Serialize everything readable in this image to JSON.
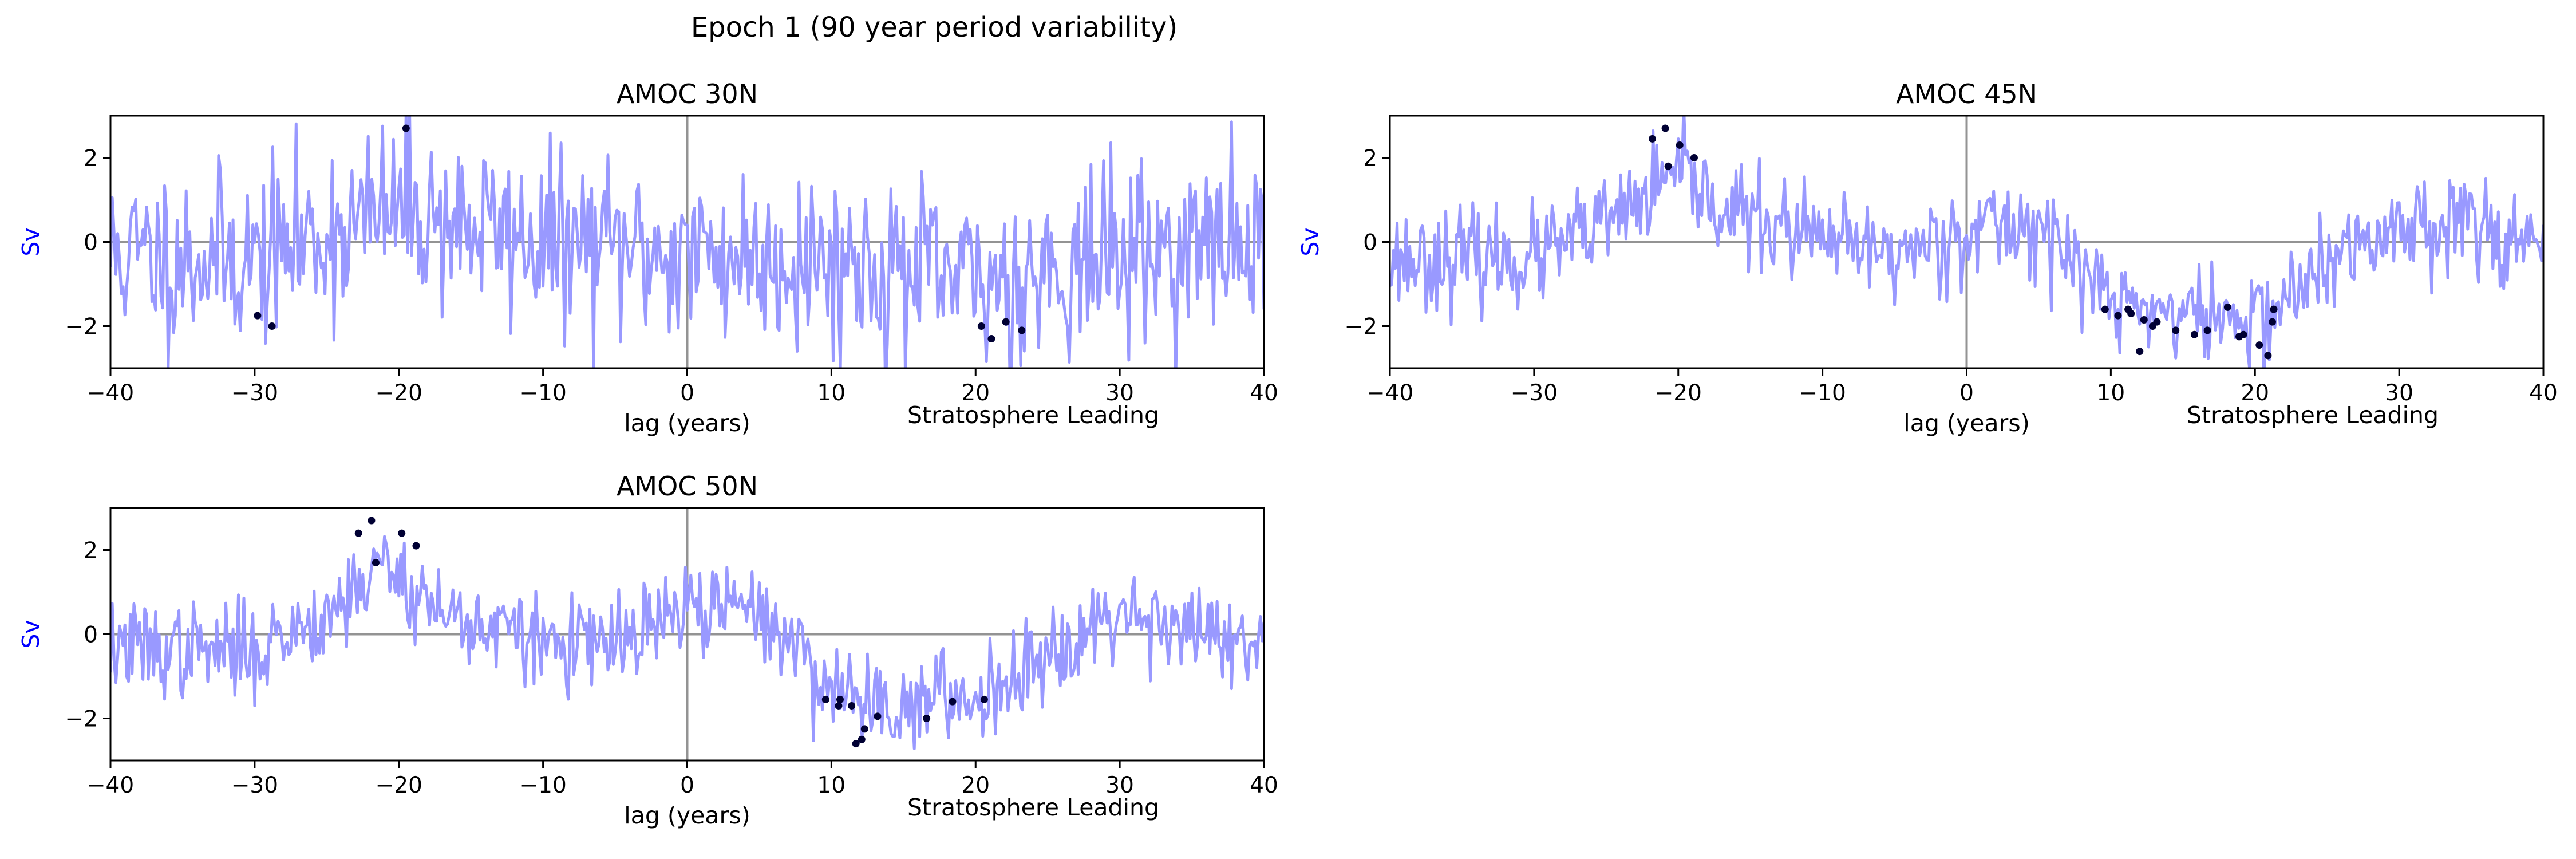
{
  "figure": {
    "suptitle": "Epoch 1 (90 year period variability)"
  },
  "style": {
    "line_color": "#9999ff",
    "marker_color": "#000033",
    "ylabel_color": "#0000ff",
    "zero_line_color": "#808080"
  },
  "chart_data": [
    {
      "type": "line",
      "title": "AMOC 30N",
      "xlabel": "lag (years)",
      "ylabel": "Sv",
      "annotation": "Stratosphere Leading",
      "xlim": [
        -40,
        40
      ],
      "ylim": [
        -3,
        3
      ],
      "xticks": [
        -40,
        -30,
        -20,
        -10,
        0,
        10,
        20,
        30,
        40
      ],
      "yticks": [
        -2,
        0,
        2
      ],
      "grid": false,
      "reference_lines": {
        "x": 0,
        "y": 0
      },
      "series": [
        {
          "style": "line",
          "x_range": [
            -40,
            40
          ],
          "n_points": 641,
          "trend_points": [
            [
              -40,
              -0.3
            ],
            [
              -30,
              -0.4
            ],
            [
              -20,
              0.8
            ],
            [
              -10,
              0.0
            ],
            [
              0,
              -0.3
            ],
            [
              10,
              -0.4
            ],
            [
              20,
              -1.0
            ],
            [
              30,
              -0.3
            ],
            [
              40,
              0.0
            ]
          ],
          "noise_sd": 1.05,
          "seed": 11
        },
        {
          "style": "scatter",
          "points": [
            [
              -29.8,
              -1.75
            ],
            [
              -28.8,
              -2.0
            ],
            [
              -19.5,
              2.7
            ],
            [
              20.4,
              -2.0
            ],
            [
              21.1,
              -2.3
            ],
            [
              22.1,
              -1.9
            ],
            [
              23.2,
              -2.1
            ]
          ]
        }
      ]
    },
    {
      "type": "line",
      "title": "AMOC 45N",
      "xlabel": "lag (years)",
      "ylabel": "Sv",
      "annotation": "Stratosphere Leading",
      "xlim": [
        -40,
        40
      ],
      "ylim": [
        -3,
        3
      ],
      "xticks": [
        -40,
        -30,
        -20,
        -10,
        0,
        10,
        20,
        30,
        40
      ],
      "yticks": [
        -2,
        0,
        2
      ],
      "grid": false,
      "reference_lines": {
        "x": 0,
        "y": 0
      },
      "series": [
        {
          "style": "line",
          "x_range": [
            -40,
            40
          ],
          "n_points": 641,
          "trend_points": [
            [
              -40,
              -0.4
            ],
            [
              -30,
              -0.4
            ],
            [
              -25,
              0.4
            ],
            [
              -20,
              1.6
            ],
            [
              -17,
              0.8
            ],
            [
              -10,
              0.0
            ],
            [
              -5,
              -0.3
            ],
            [
              0,
              0.3
            ],
            [
              5,
              0.4
            ],
            [
              10,
              -1.4
            ],
            [
              15,
              -1.7
            ],
            [
              20,
              -1.9
            ],
            [
              25,
              -0.6
            ],
            [
              30,
              0.4
            ],
            [
              35,
              0.6
            ],
            [
              40,
              -0.3
            ]
          ],
          "noise_sd": 0.58,
          "seed": 23
        },
        {
          "style": "scatter",
          "points": [
            [
              -21.8,
              2.45
            ],
            [
              -20.9,
              2.7
            ],
            [
              -20.7,
              1.8
            ],
            [
              -19.9,
              2.3
            ],
            [
              -18.9,
              2.0
            ],
            [
              9.6,
              -1.6
            ],
            [
              10.5,
              -1.75
            ],
            [
              11.2,
              -1.6
            ],
            [
              11.4,
              -1.7
            ],
            [
              12.0,
              -2.6
            ],
            [
              12.3,
              -1.85
            ],
            [
              12.9,
              -2.0
            ],
            [
              13.2,
              -1.9
            ],
            [
              14.5,
              -2.1
            ],
            [
              15.8,
              -2.2
            ],
            [
              16.7,
              -2.1
            ],
            [
              18.1,
              -1.55
            ],
            [
              18.9,
              -2.25
            ],
            [
              19.2,
              -2.2
            ],
            [
              20.3,
              -2.45
            ],
            [
              20.9,
              -2.7
            ],
            [
              21.2,
              -1.9
            ],
            [
              21.3,
              -1.6
            ]
          ]
        }
      ]
    },
    {
      "type": "line",
      "title": "AMOC 50N",
      "xlabel": "lag (years)",
      "ylabel": "Sv",
      "annotation": "Stratosphere Leading",
      "xlim": [
        -40,
        40
      ],
      "ylim": [
        -3,
        3
      ],
      "xticks": [
        -40,
        -30,
        -20,
        -10,
        0,
        10,
        20,
        30,
        40
      ],
      "yticks": [
        -2,
        0,
        2
      ],
      "grid": false,
      "reference_lines": {
        "x": 0,
        "y": 0
      },
      "series": [
        {
          "style": "line",
          "x_range": [
            -40,
            40
          ],
          "n_points": 641,
          "trend_points": [
            [
              -40,
              -0.3
            ],
            [
              -35,
              -0.4
            ],
            [
              -30,
              -0.4
            ],
            [
              -25,
              0.5
            ],
            [
              -21,
              1.7
            ],
            [
              -17,
              0.5
            ],
            [
              -10,
              -0.2
            ],
            [
              -5,
              -0.3
            ],
            [
              0,
              0.6
            ],
            [
              5,
              0.6
            ],
            [
              10,
              -1.3
            ],
            [
              15,
              -1.7
            ],
            [
              20,
              -1.5
            ],
            [
              25,
              -0.4
            ],
            [
              30,
              0.6
            ],
            [
              35,
              0.2
            ],
            [
              40,
              -0.6
            ]
          ],
          "noise_sd": 0.55,
          "seed": 37
        },
        {
          "style": "scatter",
          "points": [
            [
              -22.8,
              2.4
            ],
            [
              -21.9,
              2.7
            ],
            [
              -21.6,
              1.7
            ],
            [
              -19.8,
              2.4
            ],
            [
              -18.8,
              2.1
            ],
            [
              9.6,
              -1.55
            ],
            [
              10.5,
              -1.7
            ],
            [
              10.6,
              -1.55
            ],
            [
              11.4,
              -1.7
            ],
            [
              11.7,
              -2.6
            ],
            [
              12.1,
              -2.5
            ],
            [
              12.3,
              -2.25
            ],
            [
              13.2,
              -1.95
            ],
            [
              16.6,
              -2.0
            ],
            [
              18.4,
              -1.6
            ],
            [
              20.6,
              -1.55
            ]
          ]
        }
      ]
    }
  ]
}
